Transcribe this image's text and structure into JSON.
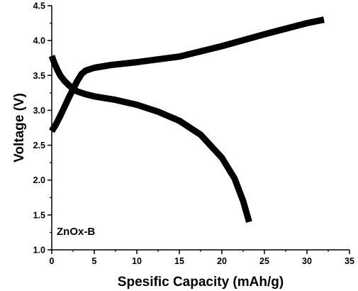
{
  "chart_data": {
    "type": "line",
    "xlabel": "Spesific Capacity (mAh/g)",
    "ylabel": "Voltage (V)",
    "xlim": [
      0,
      35
    ],
    "ylim": [
      1.0,
      4.5
    ],
    "xticks": [
      0,
      5,
      10,
      15,
      20,
      25,
      30,
      35
    ],
    "yticks": [
      1.0,
      1.5,
      2.0,
      2.5,
      3.0,
      3.5,
      4.0,
      4.5
    ],
    "xtick_labels": [
      "0",
      "5",
      "10",
      "15",
      "20",
      "25",
      "30",
      "35"
    ],
    "ytick_labels": [
      "1.0",
      "1.5",
      "2.0",
      "2.5",
      "3.0",
      "3.5",
      "4.0",
      "4.5"
    ],
    "annotation": "ZnOx-B",
    "grid": false,
    "series": [
      {
        "x": [
          0,
          0.5,
          1.0,
          1.5,
          2.0,
          2.5,
          3.0,
          3.5,
          4.0,
          5.0,
          7.0,
          10.0,
          15.0,
          20.0,
          25.0,
          30.0,
          32.0
        ],
        "y": [
          2.7,
          2.8,
          2.92,
          3.05,
          3.18,
          3.3,
          3.42,
          3.52,
          3.57,
          3.61,
          3.65,
          3.69,
          3.77,
          3.92,
          4.09,
          4.25,
          4.3
        ],
        "color": "#000000"
      },
      {
        "x": [
          0,
          0.3,
          0.7,
          1.0,
          1.5,
          2.0,
          2.5,
          3.0,
          4.0,
          5.0,
          7.5,
          10.0,
          12.5,
          15.0,
          17.5,
          20.0,
          21.5,
          22.5,
          23.2
        ],
        "y": [
          3.78,
          3.68,
          3.57,
          3.5,
          3.42,
          3.36,
          3.31,
          3.27,
          3.23,
          3.2,
          3.15,
          3.08,
          2.98,
          2.85,
          2.65,
          2.32,
          2.02,
          1.7,
          1.4
        ],
        "color": "#000000"
      }
    ]
  }
}
